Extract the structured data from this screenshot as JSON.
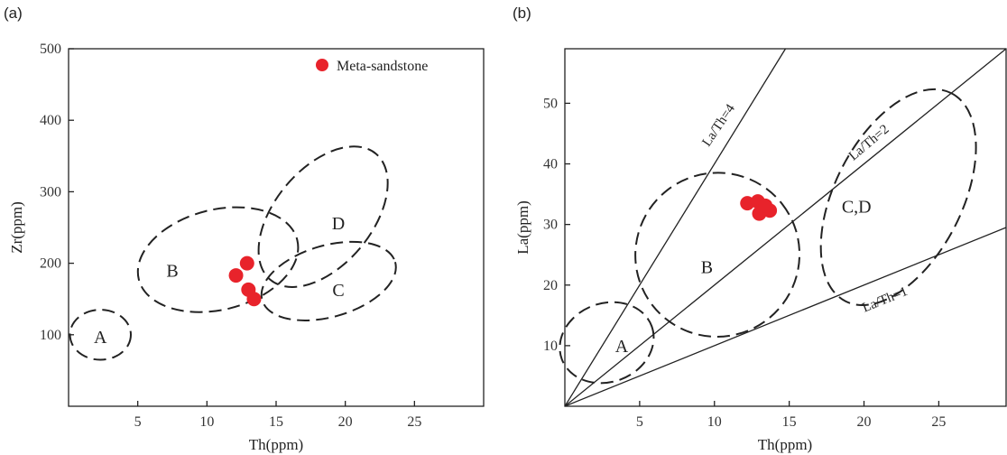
{
  "chart_data": [
    {
      "panel_label": "(a)",
      "type": "scatter",
      "xlabel": "Th(ppm)",
      "ylabel": "Zr(ppm)",
      "xlim": [
        0,
        30
      ],
      "ylim": [
        0,
        500
      ],
      "xticks": [
        5,
        10,
        15,
        20,
        25
      ],
      "yticks": [
        100,
        200,
        300,
        400,
        500
      ],
      "legend": {
        "label": "Meta-sandstone",
        "color": "#e8232b",
        "placement": "top-right"
      },
      "series": [
        {
          "name": "Meta-sandstone",
          "color": "#e8232b",
          "points": [
            {
              "x": 12.1,
              "y": 183
            },
            {
              "x": 12.9,
              "y": 200
            },
            {
              "x": 13.0,
              "y": 163
            },
            {
              "x": 13.4,
              "y": 150
            }
          ]
        }
      ],
      "fields": [
        {
          "label": "A",
          "cx": 2.3,
          "cy": 100,
          "rx": 2.2,
          "ry": 35,
          "angle": 0,
          "label_x": 2.3,
          "label_y": 97
        },
        {
          "label": "B",
          "cx": 10.8,
          "cy": 205,
          "rx": 5.9,
          "ry": 70,
          "angle": -14,
          "label_x": 7.5,
          "label_y": 190
        },
        {
          "label": "C",
          "cx": 18.8,
          "cy": 175,
          "rx": 5.0,
          "ry": 50,
          "angle": -16,
          "label_x": 19.5,
          "label_y": 163
        },
        {
          "label": "D",
          "cx": 18.4,
          "cy": 265,
          "rx": 3.5,
          "ry": 115,
          "angle": 40,
          "label_x": 19.5,
          "label_y": 256
        }
      ]
    },
    {
      "panel_label": "(b)",
      "type": "scatter",
      "xlabel": "Th(ppm)",
      "ylabel": "La(ppm)",
      "xlim": [
        0,
        29.5
      ],
      "ylim": [
        0,
        59
      ],
      "xticks": [
        5,
        10,
        15,
        20,
        25
      ],
      "yticks": [
        10,
        20,
        30,
        40,
        50
      ],
      "series": [
        {
          "name": "Meta-sandstone",
          "color": "#e8232b",
          "points": [
            {
              "x": 12.2,
              "y": 33.5
            },
            {
              "x": 12.9,
              "y": 33.8
            },
            {
              "x": 13.3,
              "y": 32.8
            },
            {
              "x": 13.7,
              "y": 32.3
            },
            {
              "x": 13.0,
              "y": 31.8
            },
            {
              "x": 13.4,
              "y": 33.1
            }
          ]
        }
      ],
      "ratio_lines": [
        {
          "label": "La/Th=4",
          "slope": 4,
          "label_x": 10.5,
          "label_y": 46,
          "label_angle": -56
        },
        {
          "label": "La/Th=2",
          "slope": 2,
          "label_x": 20.5,
          "label_y": 43,
          "label_angle": -40
        },
        {
          "label": "La/Th=1",
          "slope": 1,
          "label_x": 21.5,
          "label_y": 17,
          "label_angle": -22
        }
      ],
      "fields": [
        {
          "label": "A",
          "cx": 2.8,
          "cy": 10.5,
          "rx": 3.2,
          "ry": 6.5,
          "angle": -20,
          "label_x": 3.8,
          "label_y": 10
        },
        {
          "label": "B",
          "cx": 10.2,
          "cy": 25,
          "rx": 5.5,
          "ry": 13.5,
          "angle": -38,
          "label_x": 9.5,
          "label_y": 23
        },
        {
          "label": "C,D",
          "cx": 22.3,
          "cy": 34.5,
          "rx": 7.8,
          "ry": 10.5,
          "angle": -63,
          "label_x": 19.5,
          "label_y": 33
        }
      ]
    }
  ]
}
